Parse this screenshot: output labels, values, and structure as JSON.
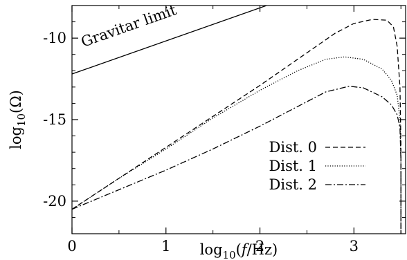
{
  "chart_data": {
    "type": "line",
    "title": "",
    "xlabel_parts": {
      "pre": "log",
      "sub": "10",
      "mid": "(",
      "italic": "f",
      "post": "/Hz)"
    },
    "ylabel_parts": {
      "pre": "log",
      "sub": "10",
      "post": "(Ω)"
    },
    "xlim": [
      0,
      3.55
    ],
    "ylim": [
      -22,
      -8
    ],
    "x_ticks": [
      {
        "value": 0,
        "label": "0"
      },
      {
        "value": 1,
        "label": "1"
      },
      {
        "value": 2,
        "label": "2"
      },
      {
        "value": 3,
        "label": "3"
      }
    ],
    "y_ticks": [
      {
        "value": -10,
        "label": "-10"
      },
      {
        "value": -15,
        "label": "-15"
      },
      {
        "value": -20,
        "label": "-20"
      }
    ],
    "grid": false,
    "legend_position": "bottom-right",
    "annotation": {
      "text": "Gravitar limit"
    },
    "series": [
      {
        "name": "Dist. 0",
        "dash": "dashed",
        "color": "#000000",
        "x": [
          0,
          0.5,
          1.0,
          1.5,
          2.0,
          2.5,
          2.8,
          3.0,
          3.2,
          3.35,
          3.42,
          3.46,
          3.49,
          3.5,
          3.5
        ],
        "y": [
          -20.5,
          -18.6,
          -16.7,
          -14.8,
          -12.9,
          -10.9,
          -9.7,
          -9.1,
          -8.85,
          -8.9,
          -9.3,
          -10.5,
          -13.0,
          -16.5,
          -22
        ]
      },
      {
        "name": "Dist. 1",
        "dash": "dotted",
        "color": "#000000",
        "x": [
          0,
          0.5,
          1.0,
          1.5,
          2.0,
          2.4,
          2.7,
          2.9,
          3.1,
          3.3,
          3.4,
          3.46,
          3.49,
          3.5,
          3.5
        ],
        "y": [
          -20.5,
          -18.6,
          -16.8,
          -14.9,
          -13.2,
          -12.0,
          -11.3,
          -11.15,
          -11.3,
          -11.9,
          -12.6,
          -13.5,
          -15.0,
          -17.5,
          -22
        ]
      },
      {
        "name": "Dist. 2",
        "dash": "dashdot",
        "color": "#000000",
        "x": [
          0,
          0.5,
          1.0,
          1.5,
          2.0,
          2.4,
          2.7,
          2.95,
          3.1,
          3.3,
          3.4,
          3.46,
          3.49,
          3.5,
          3.5
        ],
        "y": [
          -20.5,
          -19.3,
          -18.1,
          -16.8,
          -15.4,
          -14.2,
          -13.3,
          -12.95,
          -13.05,
          -13.6,
          -14.1,
          -14.7,
          -15.5,
          -17.5,
          -22
        ]
      }
    ],
    "limit_line": {
      "name": "Gravitar limit",
      "x": [
        0,
        2.07
      ],
      "y": [
        -12.2,
        -8
      ]
    }
  }
}
